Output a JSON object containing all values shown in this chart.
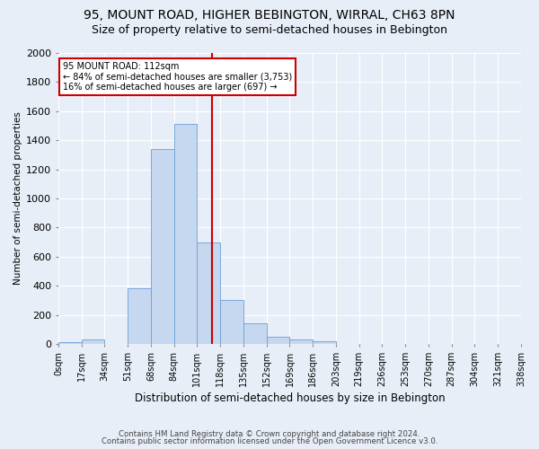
{
  "title1": "95, MOUNT ROAD, HIGHER BEBINGTON, WIRRAL, CH63 8PN",
  "title2": "Size of property relative to semi-detached houses in Bebington",
  "xlabel": "Distribution of semi-detached houses by size in Bebington",
  "ylabel": "Number of semi-detached properties",
  "bin_labels": [
    "0sqm",
    "17sqm",
    "34sqm",
    "51sqm",
    "68sqm",
    "84sqm",
    "101sqm",
    "118sqm",
    "135sqm",
    "152sqm",
    "169sqm",
    "186sqm",
    "203sqm",
    "219sqm",
    "236sqm",
    "253sqm",
    "270sqm",
    "287sqm",
    "304sqm",
    "321sqm",
    "338sqm"
  ],
  "bar_values": [
    15,
    30,
    0,
    380,
    1340,
    1510,
    700,
    305,
    140,
    50,
    30,
    20,
    0,
    0,
    0,
    0,
    0,
    0,
    0,
    0
  ],
  "bar_color": "#c5d8ef",
  "bar_edge_color": "#6a9fd8",
  "property_value": 112,
  "vline_color": "#cc0000",
  "annotation_title": "95 MOUNT ROAD: 112sqm",
  "annotation_line1": "← 84% of semi-detached houses are smaller (3,753)",
  "annotation_line2": "16% of semi-detached houses are larger (697) →",
  "annotation_box_color": "#ffffff",
  "annotation_box_edge_color": "#cc0000",
  "ylim": [
    0,
    2000
  ],
  "yticks": [
    0,
    200,
    400,
    600,
    800,
    1000,
    1200,
    1400,
    1600,
    1800,
    2000
  ],
  "footer1": "Contains HM Land Registry data © Crown copyright and database right 2024.",
  "footer2": "Contains public sector information licensed under the Open Government Licence v3.0.",
  "background_color": "#e8eef8",
  "grid_color": "#ffffff",
  "title1_fontsize": 10,
  "title2_fontsize": 9
}
